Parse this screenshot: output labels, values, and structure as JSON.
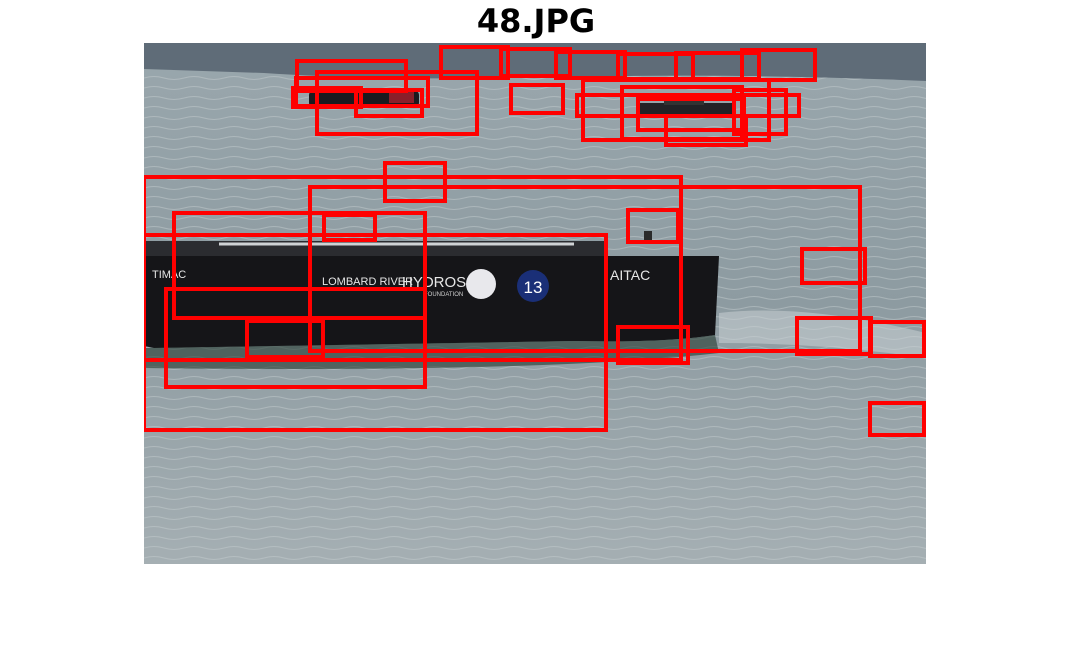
{
  "figure": {
    "title": "48.JPG"
  },
  "photo": {
    "subject": "photograph of boats on a lake",
    "hull_texts": [
      "TIMAC",
      "LOMBARD RIVER",
      "HYDROS",
      "FOUNDATION",
      "13",
      "AITAC"
    ]
  },
  "detections": {
    "box_color": "#ff0000",
    "count": 34
  }
}
